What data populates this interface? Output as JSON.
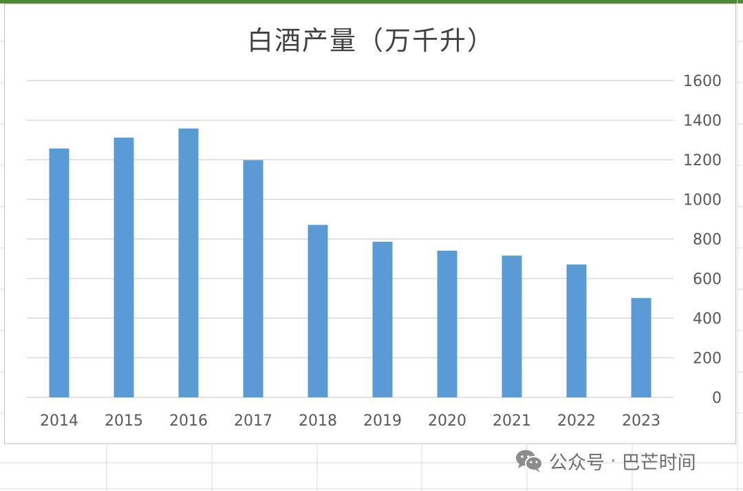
{
  "chart_data": {
    "type": "bar",
    "title": "白酒产量（万千升）",
    "categories": [
      "2014",
      "2015",
      "2016",
      "2017",
      "2018",
      "2019",
      "2020",
      "2021",
      "2022",
      "2023"
    ],
    "values": [
      1257,
      1312,
      1358,
      1198,
      871,
      786,
      741,
      716,
      671,
      502
    ],
    "ylim": [
      0,
      1600
    ],
    "yticks": [
      "0",
      "200",
      "400",
      "600",
      "800",
      "1000",
      "1200",
      "1400",
      "1600"
    ],
    "y_axis_position": "right",
    "grid": true,
    "bar_color": "#5b9bd5",
    "legend": "none"
  },
  "watermark": {
    "icon": "wechat-icon",
    "source": "公众号",
    "separator": "·",
    "author": "巴芒时间"
  }
}
